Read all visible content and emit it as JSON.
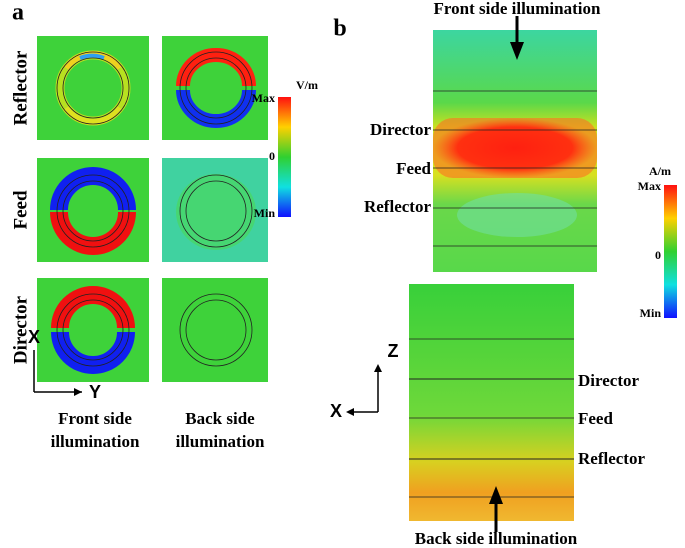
{
  "panel_a": {
    "label": "a",
    "rows": [
      "Reflector",
      "Feed",
      "Director"
    ],
    "columns": [
      [
        "Front side",
        "illumination"
      ],
      [
        "Back side",
        "illumination"
      ]
    ],
    "axes": {
      "vertical": "X",
      "horizontal": "Y"
    },
    "colorbar": {
      "unit": "V/m",
      "max": "Max",
      "zero": "0",
      "min": "Min"
    }
  },
  "panel_b": {
    "label": "b",
    "top_arrow": "Front side illumination",
    "bottom_arrow": "Back side illumination",
    "top_layers": [
      "Director",
      "Feed",
      "Reflector"
    ],
    "bottom_layers": [
      "Director",
      "Feed",
      "Reflector"
    ],
    "axes": {
      "vertical": "Z",
      "horizontal": "X"
    },
    "colorbar": {
      "unit": "A/m",
      "max": "Max",
      "zero": "0",
      "min": "Min"
    }
  }
}
